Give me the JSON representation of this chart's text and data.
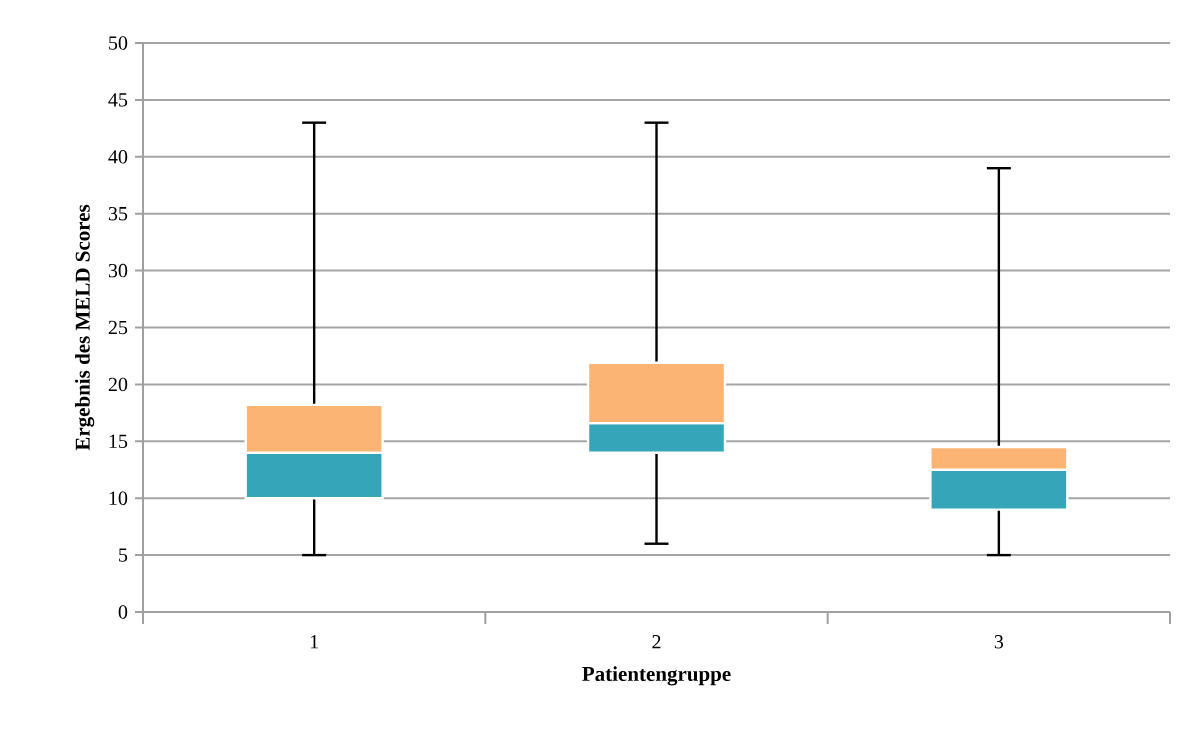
{
  "chart_data": {
    "type": "box",
    "xlabel": "Patientengruppe",
    "ylabel": "Ergebnis des MELD Scores",
    "categories": [
      "1",
      "2",
      "3"
    ],
    "boxes": [
      {
        "low": 5,
        "q1": 10,
        "median": 14,
        "q3": 18.2,
        "high": 43
      },
      {
        "low": 6,
        "q1": 14,
        "median": 16.6,
        "q3": 21.9,
        "high": 43
      },
      {
        "low": 5,
        "q1": 9,
        "median": 12.5,
        "q3": 14.5,
        "high": 39
      }
    ],
    "colors": [
      "#35a6b9",
      "#35a6b9",
      "#35a6b9"
    ],
    "color": "#fbb473",
    "ylim": [
      0,
      50
    ],
    "yticks": [
      0,
      5,
      10,
      15,
      20,
      25,
      30,
      35,
      40,
      45,
      50
    ],
    "grid": "y"
  }
}
